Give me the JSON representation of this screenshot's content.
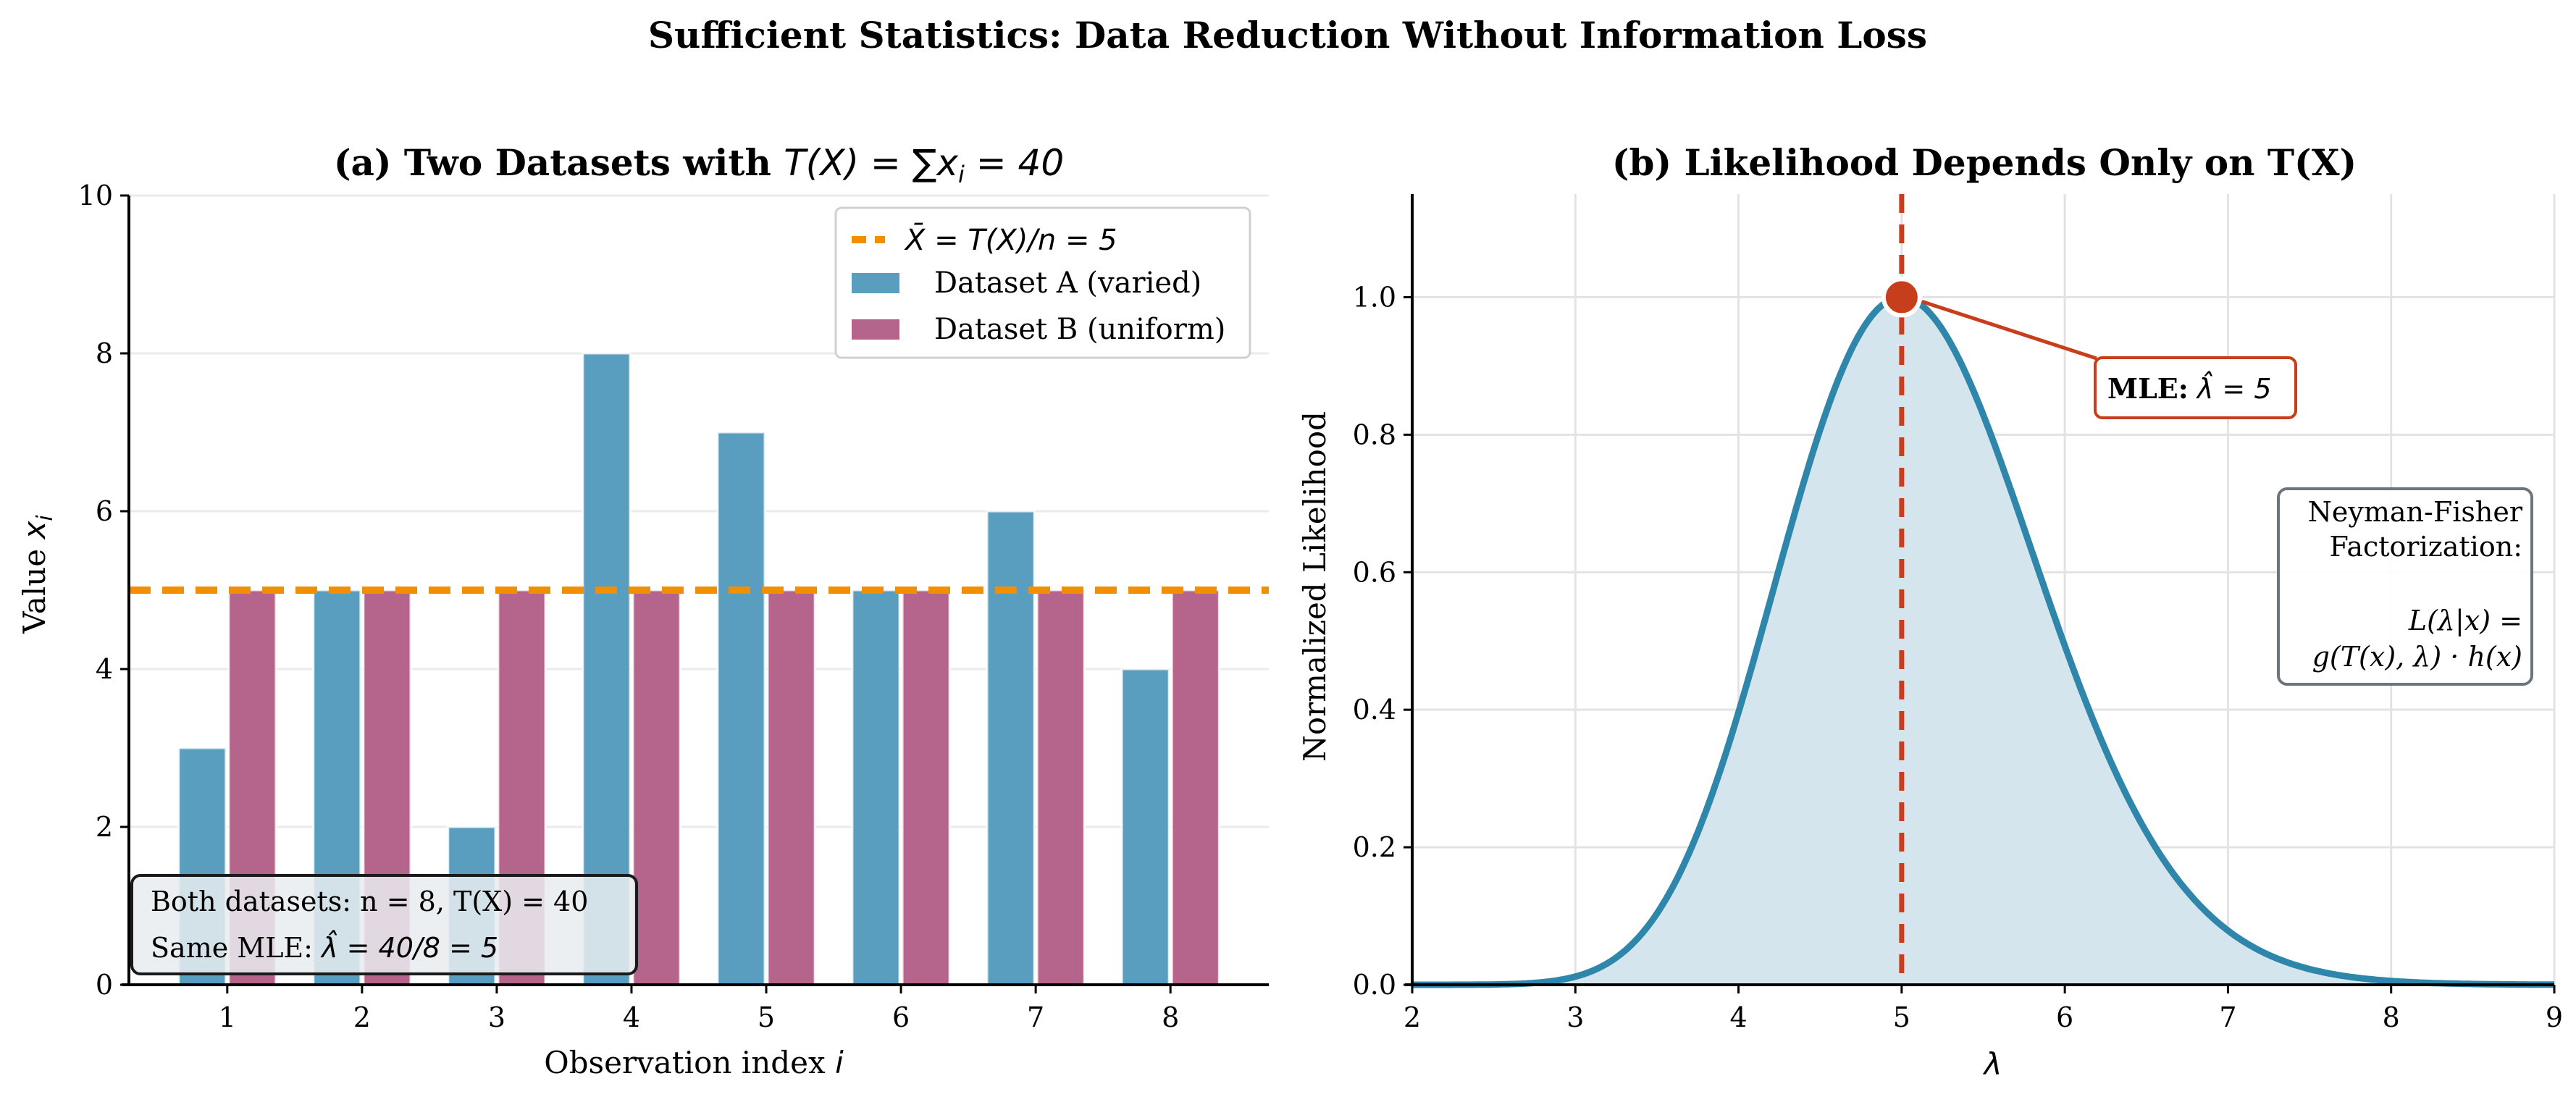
{
  "figure": {
    "suptitle": "Sufficient Statistics: Data Reduction Without Information Loss"
  },
  "colors": {
    "dataset_a": "#5a9ebf",
    "dataset_b": "#b5648c",
    "mean_line": "#f18f01",
    "likelihood": "#2e86ab",
    "likelihood_fill": "#d4e5ee",
    "mle": "#c73e1d",
    "grid": "#ebebeb",
    "factor_box_edge": "#6c757d",
    "stats_box_bg": "#e9ecf0"
  },
  "chart_data": [
    {
      "type": "bar",
      "panel": "a",
      "title_prefix": "(a) Two Datasets with ",
      "title_math": "T(X) = ∑x",
      "title_math_sub": "i",
      "title_math_suffix": " = 40",
      "xlabel": "Observation index ",
      "xlabel_math": "i",
      "ylabel": "Value ",
      "ylabel_math": "x",
      "ylabel_math_sub": "i",
      "categories": [
        "1",
        "2",
        "3",
        "4",
        "5",
        "6",
        "7",
        "8"
      ],
      "series": [
        {
          "name": "Dataset A (varied)",
          "values": [
            3,
            5,
            2,
            8,
            7,
            5,
            6,
            4
          ]
        },
        {
          "name": "Dataset B (uniform)",
          "values": [
            5,
            5,
            5,
            5,
            5,
            5,
            5,
            5
          ]
        }
      ],
      "hline": {
        "value": 5,
        "label_math": "X̄ = T(X)/n = 5"
      },
      "ylim": [
        0,
        10
      ],
      "yticks": [
        "0",
        "2",
        "4",
        "6",
        "8",
        "10"
      ],
      "grid": "y",
      "legend_position": "top-right",
      "legend": [
        {
          "kind": "line",
          "label": "X̄ = T(X)/n = 5"
        },
        {
          "kind": "patch",
          "label": "Dataset A (varied)"
        },
        {
          "kind": "patch",
          "label": "Dataset B (uniform)"
        }
      ],
      "annotation": {
        "line1": "Both datasets: n = 8, T(X) = 40",
        "line2_prefix": "Same MLE: ",
        "line2_math": "λ̂ = 40/8 = 5"
      }
    },
    {
      "type": "line",
      "panel": "b",
      "title": "(b) Likelihood Depends Only on T(X)",
      "xlabel": "λ",
      "ylabel": "Normalized Likelihood",
      "xlim": [
        2,
        9
      ],
      "ylim": [
        0,
        1.15
      ],
      "xticks": [
        "2",
        "3",
        "4",
        "5",
        "6",
        "7",
        "8",
        "9"
      ],
      "yticks": [
        "0.0",
        "0.2",
        "0.4",
        "0.6",
        "0.8",
        "1.0"
      ],
      "grid": "both",
      "model": {
        "n": 8,
        "T": 40,
        "formula": "L(λ)/L(5) = (λ/5)^40 · exp(-8(λ-5))"
      },
      "sample_points": {
        "x": [
          2,
          3,
          4,
          5,
          6,
          7,
          8,
          9
        ],
        "y": [
          0.0,
          0.012,
          0.396,
          1.0,
          0.493,
          0.079,
          0.0055,
          0.0002
        ]
      },
      "mle": {
        "x": 5,
        "y": 1.0
      },
      "mle_label_bold": "MLE:",
      "mle_label_math": " λ̂ = 5",
      "factorization": {
        "line1": "Neyman-Fisher",
        "line2": "Factorization:",
        "line3": "L(λ|x) =",
        "line4": "g(T(x), λ) · h(x)"
      }
    }
  ]
}
